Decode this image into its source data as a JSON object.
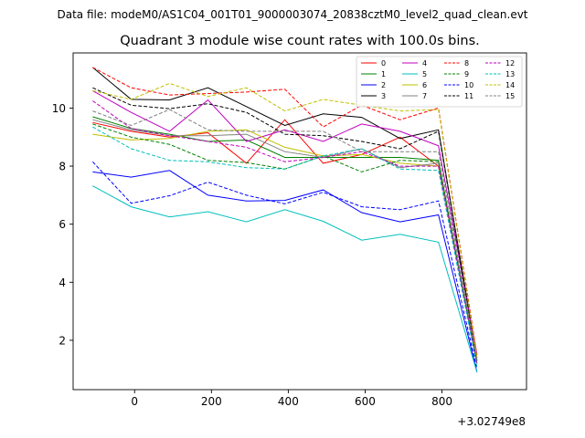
{
  "chart_data": {
    "type": "line",
    "suptitle": "Data file: modeM0/AS1C04_001T01_9000003074_20838cztM0_level2_quad_clean.evt",
    "title": "Quadrant 3 module wise count rates with 100.0s bins.",
    "xlabel": "",
    "ylabel": "",
    "x_offset_label": "+3.02749e8",
    "xlim": [
      -160,
      1020
    ],
    "ylim": [
      0.3,
      11.9
    ],
    "xticks": [
      0,
      200,
      400,
      600,
      800
    ],
    "yticks": [
      2,
      4,
      6,
      8,
      10
    ],
    "legend_position": "upper right",
    "x": [
      -109,
      -9,
      91,
      191,
      291,
      391,
      491,
      591,
      691,
      791,
      891
    ],
    "series": [
      {
        "name": "0",
        "color": "#ff0000",
        "dash": "solid",
        "values": [
          9.5,
          9.2,
          9.0,
          9.15,
          8.1,
          9.6,
          8.1,
          8.4,
          9.0,
          8.0,
          1.3
        ]
      },
      {
        "name": "1",
        "color": "#008000",
        "dash": "solid",
        "values": [
          9.7,
          9.3,
          9.1,
          8.85,
          8.9,
          8.3,
          8.3,
          8.3,
          8.3,
          8.2,
          1.2
        ]
      },
      {
        "name": "2",
        "color": "#0000ff",
        "dash": "solid",
        "values": [
          7.8,
          7.62,
          7.85,
          7.0,
          6.8,
          6.82,
          7.18,
          6.4,
          6.08,
          6.32,
          0.9
        ]
      },
      {
        "name": "3",
        "color": "#000000",
        "dash": "solid",
        "values": [
          11.4,
          10.3,
          10.28,
          10.7,
          10.05,
          9.4,
          9.8,
          9.68,
          8.95,
          9.25,
          1.4
        ]
      },
      {
        "name": "4",
        "color": "#bf00bf",
        "dash": "solid",
        "values": [
          10.6,
          9.85,
          9.2,
          10.28,
          8.85,
          9.25,
          8.85,
          9.45,
          9.2,
          8.7,
          1.5
        ]
      },
      {
        "name": "5",
        "color": "#00bfbf",
        "dash": "solid",
        "values": [
          7.32,
          6.6,
          6.25,
          6.43,
          6.08,
          6.5,
          6.1,
          5.45,
          5.65,
          5.38,
          0.9
        ]
      },
      {
        "name": "6",
        "color": "#bfbf00",
        "dash": "solid",
        "values": [
          9.1,
          8.9,
          8.95,
          9.2,
          9.25,
          8.65,
          8.35,
          8.4,
          8.1,
          8.0,
          1.4
        ]
      },
      {
        "name": "7",
        "color": "#808080",
        "dash": "solid",
        "values": [
          9.6,
          9.25,
          9.05,
          9.05,
          9.1,
          8.5,
          8.3,
          8.6,
          7.95,
          8.1,
          1.3
        ]
      },
      {
        "name": "8",
        "color": "#ff0000",
        "dash": "dashed",
        "values": [
          11.4,
          10.7,
          10.45,
          10.5,
          10.55,
          10.65,
          9.35,
          10.1,
          9.6,
          10.0,
          1.5
        ]
      },
      {
        "name": "9",
        "color": "#008000",
        "dash": "dashed",
        "values": [
          9.45,
          9.0,
          8.75,
          8.2,
          8.12,
          7.9,
          8.35,
          7.8,
          8.2,
          8.15,
          1.2
        ]
      },
      {
        "name": "10",
        "color": "#0000ff",
        "dash": "dashed",
        "values": [
          8.15,
          6.72,
          6.98,
          7.45,
          7.0,
          6.7,
          7.1,
          6.6,
          6.5,
          6.8,
          1.0
        ]
      },
      {
        "name": "11",
        "color": "#000000",
        "dash": "dashed",
        "values": [
          10.7,
          10.1,
          9.98,
          10.15,
          9.85,
          9.1,
          9.05,
          8.85,
          8.6,
          9.2,
          1.3
        ]
      },
      {
        "name": "12",
        "color": "#bf00bf",
        "dash": "dashed",
        "values": [
          10.25,
          9.3,
          9.05,
          8.85,
          8.65,
          8.15,
          8.3,
          8.5,
          8.0,
          8.0,
          1.2
        ]
      },
      {
        "name": "13",
        "color": "#00bfbf",
        "dash": "dashed",
        "values": [
          9.35,
          8.6,
          8.2,
          8.15,
          7.95,
          7.9,
          8.35,
          8.6,
          7.9,
          7.85,
          1.1
        ]
      },
      {
        "name": "14",
        "color": "#bfbf00",
        "dash": "dashed",
        "values": [
          10.6,
          10.3,
          10.85,
          10.4,
          10.7,
          9.9,
          10.3,
          10.1,
          9.9,
          9.95,
          1.4
        ]
      },
      {
        "name": "15",
        "color": "#808080",
        "dash": "dashed",
        "values": [
          9.9,
          9.4,
          9.95,
          9.25,
          9.2,
          9.2,
          9.2,
          8.5,
          8.5,
          8.5,
          1.3
        ]
      }
    ]
  }
}
